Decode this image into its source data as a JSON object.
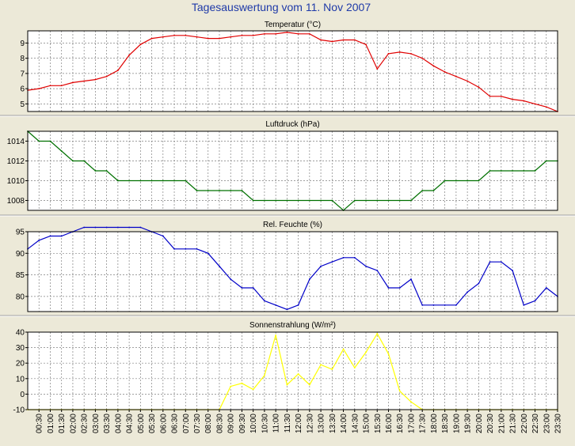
{
  "title": "Tagesauswertung vom 11. Nov 2007",
  "colors": {
    "background": "#ece9d8",
    "title": "#1f3aa8",
    "plot_bg": "#ffffff",
    "grid": "#808080",
    "temperature": "#e00000",
    "pressure": "#007000",
    "humidity": "#0000c8",
    "radiation": "#ffff00"
  },
  "x_tick_labels": [
    "00:30",
    "01:00",
    "01:30",
    "02:00",
    "02:30",
    "03:00",
    "03:30",
    "04:00",
    "04:30",
    "05:00",
    "05:30",
    "06:00",
    "06:30",
    "07:00",
    "07:30",
    "08:00",
    "08:30",
    "09:00",
    "09:30",
    "10:00",
    "10:30",
    "11:00",
    "11:30",
    "12:00",
    "12:30",
    "13:00",
    "13:30",
    "14:00",
    "14:30",
    "15:00",
    "15:30",
    "16:00",
    "16:30",
    "17:00",
    "17:30",
    "18:00",
    "18:30",
    "19:00",
    "19:30",
    "20:00",
    "20:30",
    "21:00",
    "21:30",
    "22:00",
    "22:30",
    "23:00",
    "23:30"
  ],
  "chart_data": [
    {
      "type": "line",
      "title": "Temperatur (°C)",
      "series_color": "#e00000",
      "ylim": [
        4.5,
        9.8
      ],
      "yticks": [
        5,
        6,
        7,
        8,
        9
      ],
      "x": [
        "00:00",
        "00:30",
        "01:00",
        "01:30",
        "02:00",
        "02:30",
        "03:00",
        "03:30",
        "04:00",
        "04:30",
        "05:00",
        "05:30",
        "06:00",
        "06:30",
        "07:00",
        "07:30",
        "08:00",
        "08:30",
        "09:00",
        "09:30",
        "10:00",
        "10:30",
        "11:00",
        "11:30",
        "12:00",
        "12:30",
        "13:00",
        "13:30",
        "14:00",
        "14:30",
        "15:00",
        "15:30",
        "16:00",
        "16:30",
        "17:00",
        "17:30",
        "18:00",
        "18:30",
        "19:00",
        "19:30",
        "20:00",
        "20:30",
        "21:00",
        "21:30",
        "22:00",
        "22:30",
        "23:00",
        "23:30"
      ],
      "values": [
        5.9,
        6.0,
        6.2,
        6.2,
        6.4,
        6.5,
        6.6,
        6.8,
        7.2,
        8.2,
        8.9,
        9.3,
        9.4,
        9.5,
        9.5,
        9.4,
        9.3,
        9.3,
        9.4,
        9.5,
        9.5,
        9.6,
        9.6,
        9.7,
        9.6,
        9.6,
        9.2,
        9.1,
        9.2,
        9.2,
        8.9,
        7.3,
        8.3,
        8.4,
        8.3,
        8.0,
        7.5,
        7.1,
        6.8,
        6.5,
        6.1,
        5.5,
        5.5,
        5.3,
        5.2,
        5.0,
        4.8,
        4.5
      ]
    },
    {
      "type": "line",
      "title": "Luftdruck (hPa)",
      "series_color": "#007000",
      "ylim": [
        1007,
        1015
      ],
      "yticks": [
        1008,
        1010,
        1012,
        1014
      ],
      "x": [
        "00:00",
        "00:30",
        "01:00",
        "01:30",
        "02:00",
        "02:30",
        "03:00",
        "03:30",
        "04:00",
        "04:30",
        "05:00",
        "05:30",
        "06:00",
        "06:30",
        "07:00",
        "07:30",
        "08:00",
        "08:30",
        "09:00",
        "09:30",
        "10:00",
        "10:30",
        "11:00",
        "11:30",
        "12:00",
        "12:30",
        "13:00",
        "13:30",
        "14:00",
        "14:30",
        "15:00",
        "15:30",
        "16:00",
        "16:30",
        "17:00",
        "17:30",
        "18:00",
        "18:30",
        "19:00",
        "19:30",
        "20:00",
        "20:30",
        "21:00",
        "21:30",
        "22:00",
        "22:30",
        "23:00",
        "23:30"
      ],
      "values": [
        1015,
        1014,
        1014,
        1013,
        1012,
        1012,
        1011,
        1011,
        1010,
        1010,
        1010,
        1010,
        1010,
        1010,
        1010,
        1009,
        1009,
        1009,
        1009,
        1009,
        1008,
        1008,
        1008,
        1008,
        1008,
        1008,
        1008,
        1008,
        1007,
        1008,
        1008,
        1008,
        1008,
        1008,
        1008,
        1009,
        1009,
        1010,
        1010,
        1010,
        1010,
        1011,
        1011,
        1011,
        1011,
        1011,
        1012,
        1012
      ]
    },
    {
      "type": "line",
      "title": "Rel. Feuchte (%)",
      "series_color": "#0000c8",
      "ylim": [
        76.5,
        95
      ],
      "yticks": [
        80,
        85,
        90,
        95
      ],
      "x": [
        "00:00",
        "00:30",
        "01:00",
        "01:30",
        "02:00",
        "02:30",
        "03:00",
        "03:30",
        "04:00",
        "04:30",
        "05:00",
        "05:30",
        "06:00",
        "06:30",
        "07:00",
        "07:30",
        "08:00",
        "08:30",
        "09:00",
        "09:30",
        "10:00",
        "10:30",
        "11:00",
        "11:30",
        "12:00",
        "12:30",
        "13:00",
        "13:30",
        "14:00",
        "14:30",
        "15:00",
        "15:30",
        "16:00",
        "16:30",
        "17:00",
        "17:30",
        "18:00",
        "18:30",
        "19:00",
        "19:30",
        "20:00",
        "20:30",
        "21:00",
        "21:30",
        "22:00",
        "22:30",
        "23:00",
        "23:30"
      ],
      "values": [
        91,
        93,
        94,
        94,
        95,
        96,
        96,
        96,
        96,
        96,
        96,
        95,
        94,
        91,
        91,
        91,
        90,
        87,
        84,
        82,
        82,
        79,
        78,
        77,
        78,
        84,
        87,
        88,
        89,
        89,
        87,
        86,
        82,
        82,
        84,
        78,
        78,
        78,
        78,
        81,
        83,
        88,
        88,
        86,
        78,
        79,
        82,
        80
      ]
    },
    {
      "type": "line",
      "title": "Sonnenstrahlung (W/m²)",
      "series_color": "#ffff00",
      "ylim": [
        -10,
        40
      ],
      "yticks": [
        -10,
        0,
        10,
        20,
        30,
        40
      ],
      "x": [
        "00:00",
        "00:30",
        "01:00",
        "01:30",
        "02:00",
        "02:30",
        "03:00",
        "03:30",
        "04:00",
        "04:30",
        "05:00",
        "05:30",
        "06:00",
        "06:30",
        "07:00",
        "07:30",
        "08:00",
        "08:30",
        "09:00",
        "09:30",
        "10:00",
        "10:30",
        "11:00",
        "11:30",
        "12:00",
        "12:30",
        "13:00",
        "13:30",
        "14:00",
        "14:30",
        "15:00",
        "15:30",
        "16:00",
        "16:30",
        "17:00",
        "17:30",
        "18:00",
        "18:30",
        "19:00",
        "19:30",
        "20:00",
        "20:30",
        "21:00",
        "21:30",
        "22:00",
        "22:30",
        "23:00",
        "23:30"
      ],
      "values": [
        -10,
        -10,
        -10,
        -10,
        -10,
        -10,
        -10,
        -10,
        -10,
        -10,
        -10,
        -10,
        -10,
        -10,
        -10,
        -10,
        -10,
        -10,
        5,
        7,
        3,
        12,
        38,
        6,
        13,
        6,
        19,
        16,
        29,
        17,
        27,
        39,
        26,
        2,
        -5,
        -10,
        -10,
        -10,
        -10,
        -10,
        -10,
        -10,
        -10,
        -10,
        -10,
        -10,
        -10,
        -10
      ]
    }
  ]
}
